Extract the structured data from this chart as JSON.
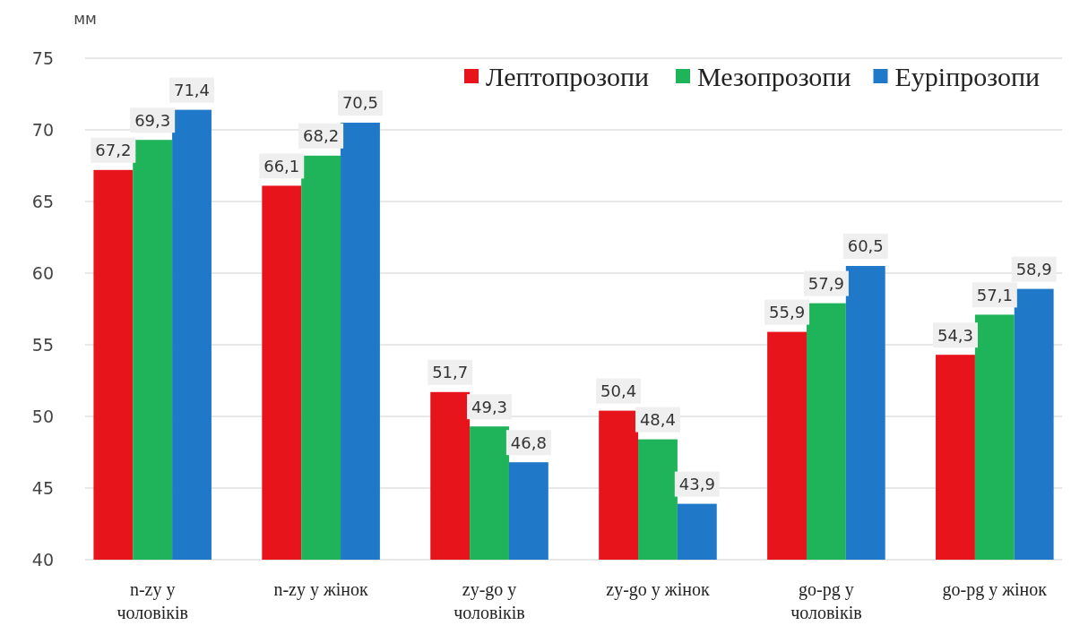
{
  "chart_data": {
    "type": "bar",
    "ylabel": "мм",
    "categories": [
      "n-zy у чоловіків",
      "n-zy у жінок",
      "zy-go у чоловіків",
      "zy-go у жінок",
      "go-pg у чоловіків",
      "go-pg у жінок"
    ],
    "series": [
      {
        "name": "Лептопрозопи",
        "color": "#e8141c",
        "values": [
          67.2,
          66.1,
          51.7,
          50.4,
          55.9,
          54.3
        ],
        "value_labels": [
          "67,2",
          "66,1",
          "51,7",
          "50,4",
          "55,9",
          "54,3"
        ]
      },
      {
        "name": "Мезопрозопи",
        "color": "#1fb35a",
        "values": [
          69.3,
          68.2,
          49.3,
          48.4,
          57.9,
          57.1
        ],
        "value_labels": [
          "69,3",
          "68,2",
          "49,3",
          "48,4",
          "57,9",
          "57,1"
        ]
      },
      {
        "name": "Еуріпрозопи",
        "color": "#1f78c8",
        "values": [
          71.4,
          70.5,
          46.8,
          43.9,
          60.5,
          58.9
        ],
        "value_labels": [
          "71,4",
          "70,5",
          "46,8",
          "43,9",
          "60,5",
          "58,9"
        ]
      }
    ],
    "ylim": [
      40,
      75
    ],
    "yticks": [
      40,
      45,
      50,
      55,
      60,
      65,
      70,
      75
    ],
    "grid": "y",
    "legend": "top right"
  }
}
